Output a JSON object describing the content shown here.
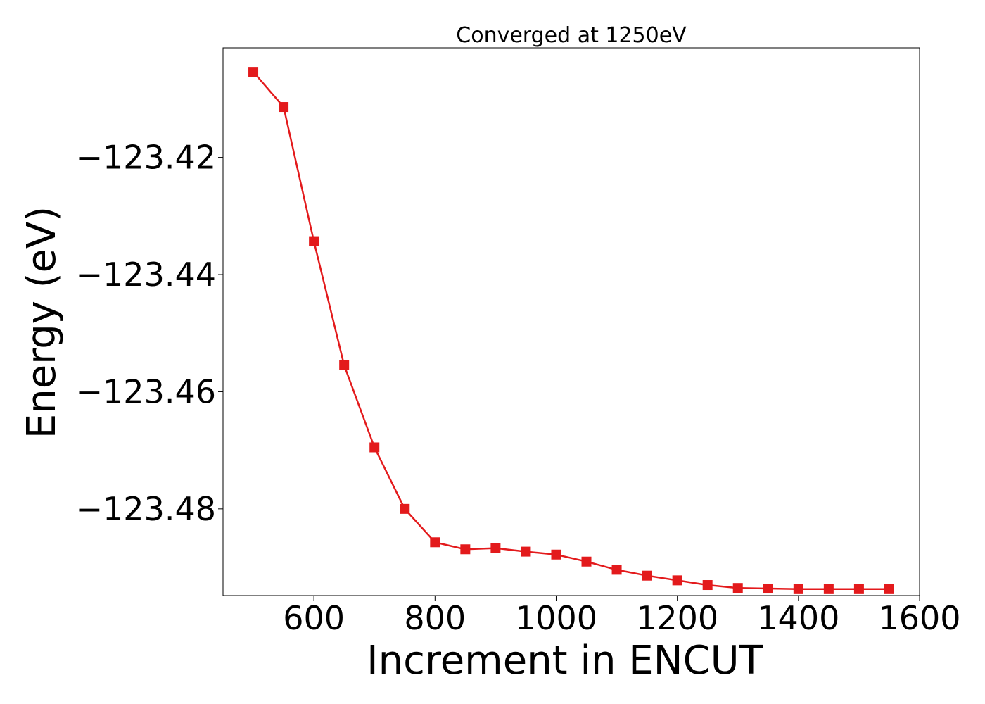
{
  "chart_data": {
    "type": "line",
    "title": "Converged at 1250eV",
    "xlabel": "Increment in ENCUT",
    "ylabel": "Energy (eV)",
    "xlim": [
      450,
      1600
    ],
    "ylim": [
      -123.4948,
      -123.4013
    ],
    "x_ticks": [
      600,
      800,
      1000,
      1200,
      1400,
      1600
    ],
    "y_ticks": [
      -123.42,
      -123.44,
      -123.46,
      -123.48
    ],
    "x_tick_labels": [
      "600",
      "800",
      "1000",
      "1200",
      "1400",
      "1600"
    ],
    "y_tick_labels": [
      "−123.42",
      "−123.44",
      "−123.46",
      "−123.48"
    ],
    "grid": false,
    "series": [
      {
        "marker": "square",
        "color": "#e31a1c",
        "x": [
          500,
          550,
          600,
          650,
          700,
          750,
          800,
          850,
          900,
          950,
          1000,
          1050,
          1100,
          1150,
          1200,
          1250,
          1300,
          1350,
          1400,
          1450,
          1500,
          1550
        ],
        "y": [
          -123.4054,
          -123.4114,
          -123.4343,
          -123.4555,
          -123.4695,
          -123.48,
          -123.4857,
          -123.4869,
          -123.4867,
          -123.4873,
          -123.4878,
          -123.489,
          -123.4904,
          -123.4914,
          -123.4922,
          -123.493,
          -123.4935,
          -123.4936,
          -123.4937,
          -123.4937,
          -123.4937,
          -123.4937
        ]
      }
    ]
  }
}
